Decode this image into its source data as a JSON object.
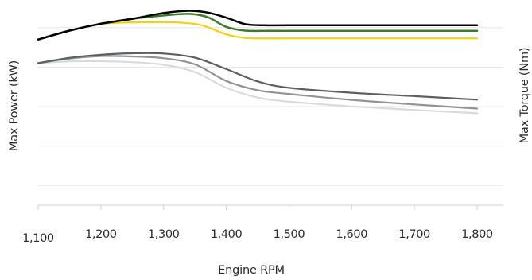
{
  "chart_data": {
    "type": "line",
    "title": "",
    "xlabel": "Engine RPM",
    "ylabel_left": "Max Power (kW)",
    "ylabel_right": "Max Torque (Nm)",
    "x_tick_labels": [
      "1,100",
      "1,200",
      "1,300",
      "1,400",
      "1,500",
      "1,600",
      "1,700",
      "1,800"
    ],
    "xlim": [
      1100,
      1800
    ],
    "ylim": [
      0,
      100
    ],
    "gridlines": "horizontal",
    "legend": "none",
    "series": [
      {
        "color": "#000000",
        "stroke_width": 2.5,
        "x": [
          1100,
          1150,
          1200,
          1250,
          1300,
          1340,
          1370,
          1400,
          1430,
          1460,
          1500,
          1600,
          1700,
          1800
        ],
        "y": [
          84,
          88.5,
          92,
          94.5,
          97.4,
          98.6,
          97.7,
          95.1,
          91.8,
          91.2,
          91.2,
          91.2,
          91.2,
          91.2
        ]
      },
      {
        "color": "#3d7a2a",
        "stroke_width": 2.5,
        "x": [
          1100,
          1150,
          1200,
          1250,
          1300,
          1340,
          1370,
          1400,
          1430,
          1460,
          1500,
          1600,
          1700,
          1800
        ],
        "y": [
          84,
          88.5,
          92,
          94.5,
          96.2,
          97,
          95.4,
          90.4,
          88.5,
          88.4,
          88.4,
          88.4,
          88.4,
          88.4
        ]
      },
      {
        "color": "#f0d30f",
        "stroke_width": 2.2,
        "x": [
          1100,
          1150,
          1200,
          1250,
          1280,
          1320,
          1360,
          1400,
          1430,
          1460,
          1500,
          1600,
          1700,
          1800
        ],
        "y": [
          84,
          88.5,
          91.8,
          92.7,
          92.8,
          92.7,
          91.3,
          86.6,
          84.8,
          84.6,
          84.6,
          84.6,
          84.6,
          84.6
        ]
      },
      {
        "color": "#5d5f63",
        "stroke_width": 2.2,
        "x": [
          1100,
          1150,
          1200,
          1250,
          1300,
          1350,
          1400,
          1450,
          1500,
          1600,
          1700,
          1800
        ],
        "y": [
          72,
          74.7,
          76.3,
          77,
          76.9,
          74.8,
          69,
          62.8,
          59.5,
          57,
          55.3,
          53.5
        ]
      },
      {
        "color": "#929395",
        "stroke_width": 2.2,
        "x": [
          1100,
          1150,
          1200,
          1250,
          1300,
          1350,
          1400,
          1450,
          1500,
          1600,
          1700,
          1800
        ],
        "y": [
          72,
          74.3,
          75.6,
          75.4,
          74.5,
          71.4,
          63,
          58.3,
          56.4,
          53.4,
          51.1,
          49
        ]
      },
      {
        "color": "#d9dadb",
        "stroke_width": 2.2,
        "x": [
          1100,
          1150,
          1200,
          1250,
          1300,
          1350,
          1400,
          1450,
          1500,
          1600,
          1700,
          1800
        ],
        "y": [
          72,
          72.9,
          73,
          72.5,
          71.2,
          67.5,
          59.5,
          54.6,
          52.5,
          50.1,
          48.3,
          46.6
        ]
      }
    ]
  }
}
